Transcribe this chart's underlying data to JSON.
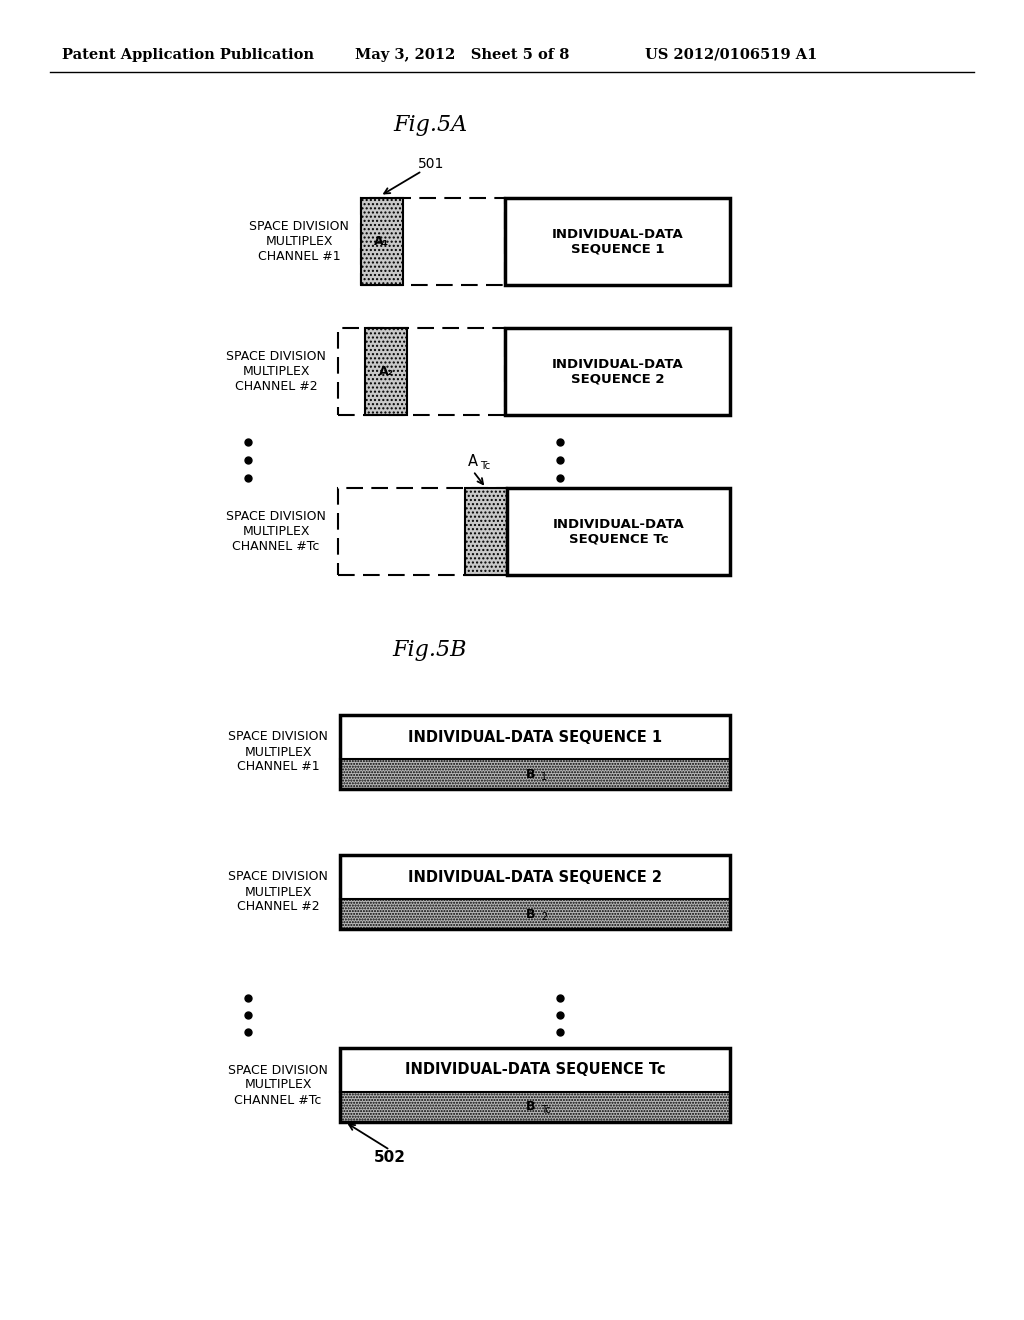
{
  "bg_color": "#ffffff",
  "header_left": "Patent Application Publication",
  "header_mid": "May 3, 2012   Sheet 5 of 8",
  "header_right": "US 2012/0106519 A1",
  "fig5a_title": "Fig.5A",
  "fig5b_title": "Fig.5B",
  "label_501": "501",
  "label_502": "502",
  "channel_labels": [
    "SPACE DIVISION\nMULTIPLEX\nCHANNEL #1",
    "SPACE DIVISION\nMULTIPLEX\nCHANNEL #2",
    "SPACE DIVISION\nMULTIPLEX\nCHANNEL #Tc"
  ],
  "seq_labels_5a": [
    "INDIVIDUAL-DATA\nSEQUENCE 1",
    "INDIVIDUAL-DATA\nSEQUENCE 2",
    "INDIVIDUAL-DATA\nSEQUENCE Tc"
  ],
  "seq_labels_5b": [
    "INDIVIDUAL-DATA SEQUENCE 1",
    "INDIVIDUAL-DATA SEQUENCE 2",
    "INDIVIDUAL-DATA SEQUENCE Tc"
  ]
}
